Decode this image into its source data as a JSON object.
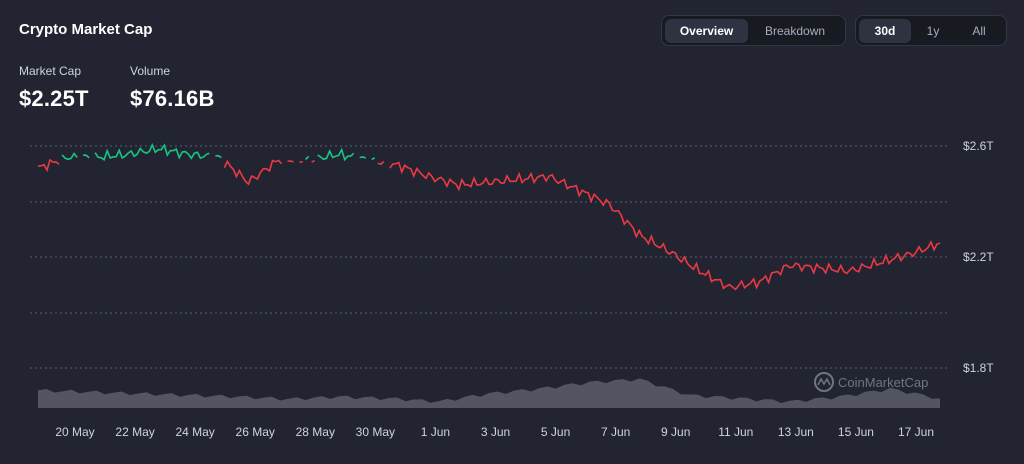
{
  "title": "Crypto Market Cap",
  "stats": [
    {
      "label": "Market Cap",
      "value": "$2.25T"
    },
    {
      "label": "Volume",
      "value": "$76.16B"
    }
  ],
  "view_tabs": [
    {
      "label": "Overview",
      "active": true
    },
    {
      "label": "Breakdown",
      "active": false
    }
  ],
  "range_tabs": [
    {
      "label": "30d",
      "active": true
    },
    {
      "label": "1y",
      "active": false
    },
    {
      "label": "All",
      "active": false
    }
  ],
  "watermark": "CoinMarketCap",
  "colors": {
    "up": "#16c784",
    "down": "#ea3943",
    "volume": "#5c5f6b",
    "grid": "#5a5e6c"
  },
  "chart_data": {
    "type": "line",
    "x_tick_labels": [
      "20 May",
      "22 May",
      "24 May",
      "26 May",
      "28 May",
      "30 May",
      "1 Jun",
      "3 Jun",
      "5 Jun",
      "7 Jun",
      "9 Jun",
      "11 Jun",
      "13 Jun",
      "15 Jun",
      "17 Jun"
    ],
    "y_tick_labels": [
      "$2.6T",
      "$2.2T",
      "$1.8T"
    ],
    "y_ticks": [
      2.6,
      2.2,
      1.8
    ],
    "ylim": [
      1.8,
      2.6
    ],
    "grid": true,
    "baseline_value": 2.55,
    "series": [
      {
        "x_days": [
          0,
          1,
          2,
          3,
          4,
          5,
          6,
          7,
          8,
          9,
          10,
          11,
          12,
          13,
          14,
          15,
          16,
          17,
          18,
          19,
          20,
          21,
          22,
          23,
          24,
          25,
          26,
          27,
          28,
          29,
          30
        ],
        "values": [
          2.52,
          2.56,
          2.56,
          2.57,
          2.59,
          2.57,
          2.56,
          2.47,
          2.55,
          2.55,
          2.57,
          2.55,
          2.53,
          2.49,
          2.46,
          2.47,
          2.48,
          2.49,
          2.44,
          2.39,
          2.28,
          2.22,
          2.15,
          2.09,
          2.11,
          2.17,
          2.16,
          2.15,
          2.18,
          2.21,
          2.25
        ]
      }
    ],
    "volume": [
      {
        "x": 0,
        "v": 0.55
      },
      {
        "x": 2,
        "v": 0.5
      },
      {
        "x": 4,
        "v": 0.45
      },
      {
        "x": 6,
        "v": 0.4
      },
      {
        "x": 8,
        "v": 0.35
      },
      {
        "x": 10,
        "v": 0.28
      },
      {
        "x": 12,
        "v": 0.35
      },
      {
        "x": 14,
        "v": 0.3
      },
      {
        "x": 16,
        "v": 0.2
      },
      {
        "x": 18,
        "v": 0.45
      },
      {
        "x": 20,
        "v": 0.6
      },
      {
        "x": 22,
        "v": 0.8
      },
      {
        "x": 24,
        "v": 0.9
      },
      {
        "x": 26,
        "v": 0.4
      },
      {
        "x": 28,
        "v": 0.3
      },
      {
        "x": 30,
        "v": 0.2
      },
      {
        "x": 32,
        "v": 0.35
      },
      {
        "x": 34,
        "v": 0.6
      },
      {
        "x": 36,
        "v": 0.3
      }
    ]
  }
}
